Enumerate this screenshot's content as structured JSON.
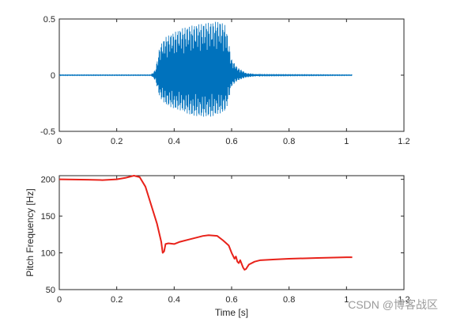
{
  "chart_data": [
    {
      "type": "line",
      "title": "",
      "xlabel": "",
      "ylabel": "",
      "xlim": [
        0,
        1.2
      ],
      "ylim": [
        -0.5,
        0.5
      ],
      "xticks": [
        "0",
        "0.2",
        "0.4",
        "0.6",
        "0.8",
        "1",
        "1.2"
      ],
      "yticks": [
        "-0.5",
        "0",
        "0.5"
      ],
      "grid": false,
      "series": [
        {
          "color": "#0072BD",
          "style": "waveform",
          "x_range": [
            0,
            1.02
          ],
          "envelope": {
            "x": [
              0,
              0.32,
              0.335,
              0.35,
              0.37,
              0.4,
              0.43,
              0.46,
              0.5,
              0.53,
              0.56,
              0.58,
              0.6,
              0.62,
              0.65,
              0.7,
              1.02
            ],
            "upper": [
              0.003,
              0.003,
              0.05,
              0.26,
              0.34,
              0.38,
              0.42,
              0.44,
              0.46,
              0.47,
              0.48,
              0.44,
              0.14,
              0.07,
              0.02,
              0.005,
              0.003
            ],
            "lower": [
              -0.003,
              -0.003,
              -0.05,
              -0.2,
              -0.26,
              -0.3,
              -0.32,
              -0.36,
              -0.37,
              -0.37,
              -0.34,
              -0.32,
              -0.1,
              -0.05,
              -0.02,
              -0.005,
              -0.003
            ]
          }
        }
      ]
    },
    {
      "type": "line",
      "title": "",
      "xlabel": "Time [s]",
      "ylabel": "Pitch Frequency [Hz]",
      "xlim": [
        0,
        1.2
      ],
      "ylim": [
        50,
        205
      ],
      "xticks": [
        "0",
        "0.2",
        "0.4",
        "0.6",
        "0.8",
        "1",
        "1.2"
      ],
      "yticks": [
        "50",
        "100",
        "150",
        "200"
      ],
      "grid": false,
      "series": [
        {
          "color": "#e8221a",
          "x": [
            0,
            0.1,
            0.15,
            0.2,
            0.23,
            0.26,
            0.28,
            0.3,
            0.32,
            0.34,
            0.355,
            0.36,
            0.365,
            0.37,
            0.38,
            0.4,
            0.42,
            0.45,
            0.48,
            0.5,
            0.52,
            0.55,
            0.57,
            0.59,
            0.6,
            0.61,
            0.615,
            0.62,
            0.625,
            0.63,
            0.64,
            0.645,
            0.65,
            0.66,
            0.68,
            0.7,
            0.75,
            0.8,
            0.9,
            1.0,
            1.02
          ],
          "y": [
            200,
            199.5,
            199,
            200,
            202,
            205,
            203,
            190,
            165,
            140,
            115,
            100,
            102,
            112,
            113,
            112,
            115,
            118,
            121,
            123,
            124,
            123,
            117,
            110,
            100,
            92,
            95,
            88,
            86,
            90,
            80,
            77,
            78,
            84,
            88,
            90,
            91,
            92,
            93,
            94,
            94
          ]
        }
      ]
    }
  ],
  "watermark": "CSDN @博客战区"
}
